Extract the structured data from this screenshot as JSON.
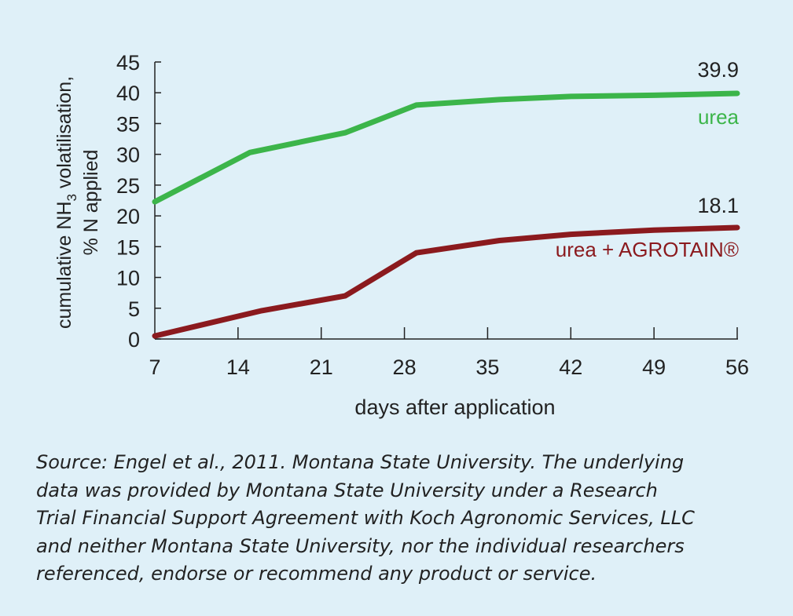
{
  "chart_data": {
    "type": "line",
    "xlabel": "days after application",
    "ylabel_line1_pre": "cumulative NH",
    "ylabel_line1_sub": "3",
    "ylabel_line1_post": " volatilisation,",
    "ylabel_line2": "% N applied",
    "xticks": [
      "7",
      "14",
      "21",
      "28",
      "35",
      "42",
      "49",
      "56"
    ],
    "yticks": [
      "0",
      "5",
      "10",
      "15",
      "20",
      "25",
      "30",
      "35",
      "40",
      "45"
    ],
    "xlim": [
      7,
      56
    ],
    "ylim": [
      0,
      45
    ],
    "series": [
      {
        "name": "urea",
        "color": "#3cb54a",
        "end_label": "39.9",
        "x": [
          7,
          15,
          23,
          29,
          36,
          42,
          49,
          56
        ],
        "y": [
          22.3,
          30.3,
          33.5,
          38,
          38.9,
          39.4,
          39.6,
          39.9
        ]
      },
      {
        "name": "urea + AGROTAIN®",
        "color": "#8b1a1e",
        "end_label": "18.1",
        "x": [
          7,
          16,
          23,
          29,
          36,
          42,
          49,
          56
        ],
        "y": [
          0.5,
          4.6,
          7,
          14,
          16,
          17,
          17.7,
          18.1
        ]
      }
    ]
  },
  "source_lines": [
    "Source: Engel et al., 2011. Montana State University. The underlying",
    "data was provided by Montana State University under a Research",
    "Trial Financial Support Agreement with Koch Agronomic Services, LLC",
    "and neither Montana State University, nor the individual researchers",
    "referenced, endorse or recommend any product or service."
  ]
}
